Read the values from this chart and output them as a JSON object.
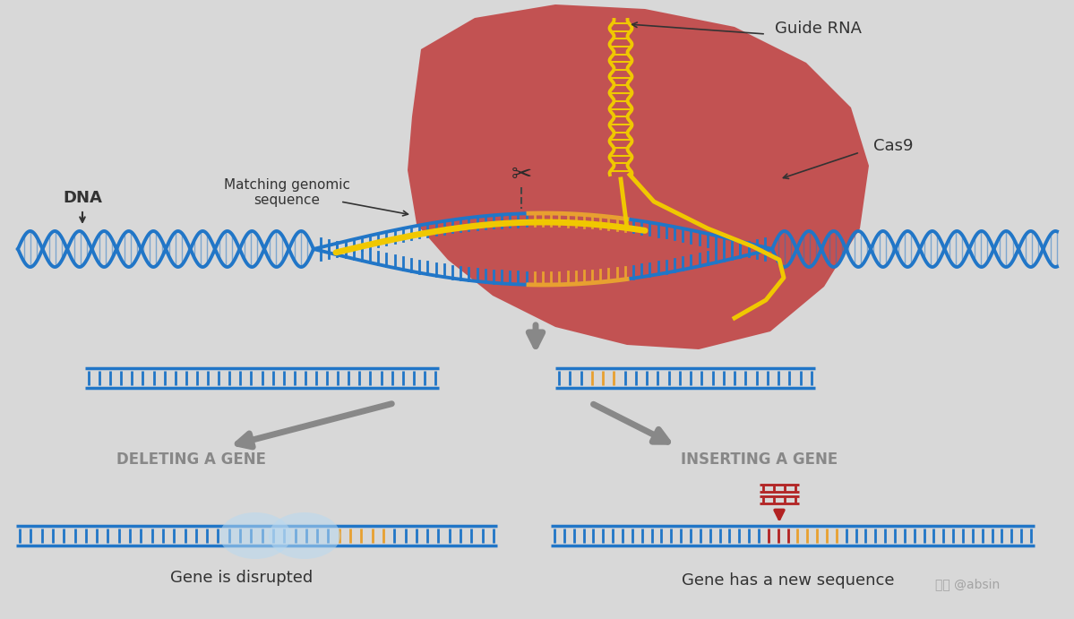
{
  "bg_color": "#d8d8d8",
  "dna_blue": "#2176c7",
  "orange_color": "#e8a030",
  "yellow_color": "#f0c800",
  "red_color": "#b22222",
  "cas9_body_color": "#c04040",
  "gray_arrow": "#888888",
  "gray_text": "#888888",
  "light_blue": "#b8d8f0",
  "dark_text": "#333333",
  "labels": {
    "dna": "DNA",
    "guide_rna": "Guide RNA",
    "cas9": "Cas9",
    "matching": "Matching genomic\nsequence",
    "deleting": "DELETING A GENE",
    "inserting": "INSERTING A GENE",
    "disrupted": "Gene is disrupted",
    "new_seq": "Gene has a new sequence",
    "watermark": "知乎 @absin"
  },
  "cas9_blob_x": [
    470,
    530,
    620,
    720,
    820,
    900,
    950,
    970,
    960,
    920,
    860,
    780,
    700,
    620,
    550,
    500,
    465,
    455,
    460,
    470
  ],
  "cas9_blob_y": [
    55,
    20,
    5,
    10,
    30,
    70,
    120,
    185,
    255,
    320,
    370,
    390,
    385,
    365,
    330,
    290,
    250,
    190,
    130,
    55
  ]
}
